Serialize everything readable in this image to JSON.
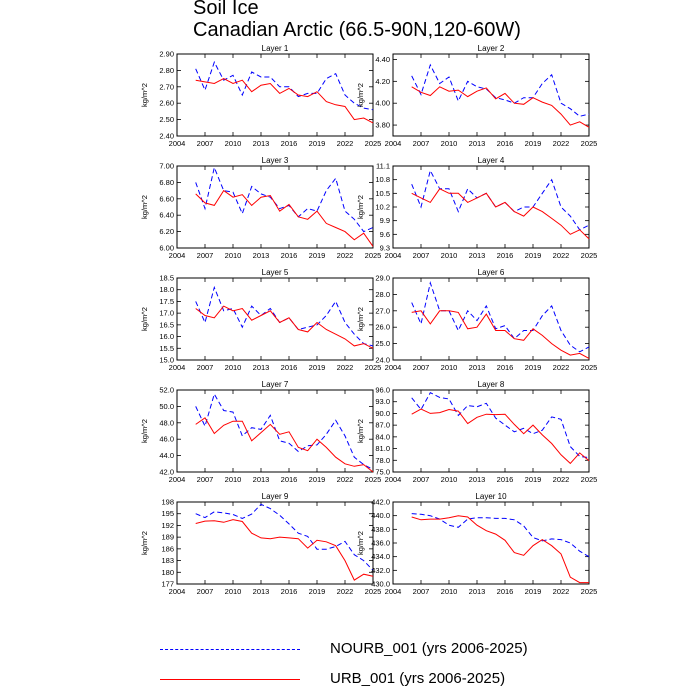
{
  "title": "Soil Ice",
  "subtitle": "Canadian Arctic (66.5-90N,120-60W)",
  "colors": {
    "nourb": "#0000ff",
    "urb": "#ff0000",
    "axis": "#000000"
  },
  "legend": [
    {
      "label": "NOURB_001 (yrs 2006-2025)",
      "color": "#0000ff",
      "style": "dashed"
    },
    {
      "label": "URB_001 (yrs 2006-2025)",
      "color": "#ff0000",
      "style": "solid"
    }
  ],
  "chart_data": [
    {
      "type": "line",
      "title": "Layer 1",
      "xlabel": "",
      "ylabel": "kg/m^2",
      "x": [
        2006,
        2007,
        2008,
        2009,
        2010,
        2011,
        2012,
        2013,
        2014,
        2015,
        2016,
        2017,
        2018,
        2019,
        2020,
        2021,
        2022,
        2023,
        2024,
        2025
      ],
      "xlim": [
        2004,
        2025
      ],
      "xticks": [
        "2004",
        "2007",
        "2010",
        "2013",
        "2016",
        "2019",
        "2022",
        "2025"
      ],
      "yticks": [
        "2.40",
        "2.50",
        "2.60",
        "2.70",
        "2.80",
        "2.90"
      ],
      "ylim": [
        2.4,
        2.9
      ],
      "series": [
        {
          "name": "NOURB_001",
          "values": [
            2.81,
            2.68,
            2.85,
            2.74,
            2.77,
            2.65,
            2.79,
            2.76,
            2.76,
            2.7,
            2.7,
            2.64,
            2.66,
            2.66,
            2.75,
            2.78,
            2.65,
            2.6,
            2.57,
            2.56
          ]
        },
        {
          "name": "URB_001",
          "values": [
            2.74,
            2.73,
            2.72,
            2.75,
            2.72,
            2.74,
            2.67,
            2.71,
            2.72,
            2.66,
            2.69,
            2.65,
            2.64,
            2.67,
            2.61,
            2.59,
            2.58,
            2.5,
            2.51,
            2.48
          ]
        }
      ]
    },
    {
      "type": "line",
      "title": "Layer 2",
      "xlabel": "",
      "ylabel": "kg/m^2",
      "x": [
        2006,
        2007,
        2008,
        2009,
        2010,
        2011,
        2012,
        2013,
        2014,
        2015,
        2016,
        2017,
        2018,
        2019,
        2020,
        2021,
        2022,
        2023,
        2024,
        2025
      ],
      "xlim": [
        2004,
        2025
      ],
      "xticks": [
        "2004",
        "2007",
        "2010",
        "2013",
        "2016",
        "2019",
        "2022",
        "2025"
      ],
      "yticks": [
        "3.80",
        "4.00",
        "4.20",
        "4.40"
      ],
      "ylim": [
        3.7,
        4.45
      ],
      "series": [
        {
          "name": "NOURB_001",
          "values": [
            4.25,
            4.08,
            4.35,
            4.18,
            4.24,
            4.02,
            4.2,
            4.15,
            4.13,
            4.05,
            4.03,
            4.0,
            4.05,
            4.05,
            4.18,
            4.26,
            4.0,
            3.95,
            3.88,
            3.9
          ]
        },
        {
          "name": "URB_001",
          "values": [
            4.15,
            4.1,
            4.07,
            4.15,
            4.11,
            4.12,
            4.06,
            4.11,
            4.14,
            4.04,
            4.09,
            4.0,
            3.99,
            4.05,
            4.01,
            3.98,
            3.9,
            3.8,
            3.83,
            3.78
          ]
        }
      ]
    },
    {
      "type": "line",
      "title": "Layer 3",
      "xlabel": "",
      "ylabel": "kg/m^2",
      "x": [
        2006,
        2007,
        2008,
        2009,
        2010,
        2011,
        2012,
        2013,
        2014,
        2015,
        2016,
        2017,
        2018,
        2019,
        2020,
        2021,
        2022,
        2023,
        2024,
        2025
      ],
      "xlim": [
        2004,
        2025
      ],
      "xticks": [
        "2004",
        "2007",
        "2010",
        "2013",
        "2016",
        "2019",
        "2022",
        "2025"
      ],
      "yticks": [
        "6.00",
        "6.20",
        "6.40",
        "6.60",
        "6.80",
        "7.00"
      ],
      "ylim": [
        6.0,
        7.0
      ],
      "series": [
        {
          "name": "NOURB_001",
          "values": [
            6.8,
            6.48,
            6.98,
            6.7,
            6.68,
            6.42,
            6.75,
            6.66,
            6.62,
            6.48,
            6.52,
            6.38,
            6.48,
            6.45,
            6.7,
            6.85,
            6.45,
            6.35,
            6.2,
            6.25
          ]
        },
        {
          "name": "URB_001",
          "values": [
            6.66,
            6.55,
            6.52,
            6.7,
            6.62,
            6.65,
            6.52,
            6.62,
            6.64,
            6.45,
            6.53,
            6.38,
            6.35,
            6.45,
            6.3,
            6.25,
            6.2,
            6.1,
            6.18,
            6.02
          ]
        }
      ]
    },
    {
      "type": "line",
      "title": "Layer 4",
      "xlabel": "",
      "ylabel": "kg/m^2",
      "x": [
        2006,
        2007,
        2008,
        2009,
        2010,
        2011,
        2012,
        2013,
        2014,
        2015,
        2016,
        2017,
        2018,
        2019,
        2020,
        2021,
        2022,
        2023,
        2024,
        2025
      ],
      "xlim": [
        2004,
        2025
      ],
      "xticks": [
        "2004",
        "2007",
        "2010",
        "2013",
        "2016",
        "2019",
        "2022",
        "2025"
      ],
      "yticks": [
        "9.3",
        "9.6",
        "9.9",
        "10.2",
        "10.5",
        "10.8",
        "11.1"
      ],
      "ylim": [
        9.3,
        11.1
      ],
      "series": [
        {
          "name": "NOURB_001",
          "values": [
            10.7,
            10.2,
            11.0,
            10.6,
            10.6,
            10.1,
            10.6,
            10.4,
            10.5,
            10.2,
            10.3,
            10.1,
            10.2,
            10.2,
            10.5,
            10.8,
            10.2,
            10.0,
            9.7,
            9.8
          ]
        },
        {
          "name": "URB_001",
          "values": [
            10.5,
            10.4,
            10.3,
            10.6,
            10.5,
            10.5,
            10.3,
            10.4,
            10.5,
            10.2,
            10.3,
            10.1,
            10.0,
            10.2,
            10.1,
            9.95,
            9.8,
            9.6,
            9.7,
            9.5
          ]
        }
      ]
    },
    {
      "type": "line",
      "title": "Layer 5",
      "xlabel": "",
      "ylabel": "kg/m^2",
      "x": [
        2006,
        2007,
        2008,
        2009,
        2010,
        2011,
        2012,
        2013,
        2014,
        2015,
        2016,
        2017,
        2018,
        2019,
        2020,
        2021,
        2022,
        2023,
        2024,
        2025
      ],
      "xlim": [
        2004,
        2025
      ],
      "xticks": [
        "2004",
        "2007",
        "2010",
        "2013",
        "2016",
        "2019",
        "2022",
        "2025"
      ],
      "yticks": [
        "15.0",
        "15.5",
        "16.0",
        "16.5",
        "17.0",
        "17.5",
        "18.0",
        "18.5"
      ],
      "ylim": [
        15.0,
        18.5
      ],
      "series": [
        {
          "name": "NOURB_001",
          "values": [
            17.5,
            16.6,
            18.1,
            17.1,
            17.2,
            16.4,
            17.3,
            16.9,
            17.2,
            16.6,
            16.8,
            16.3,
            16.4,
            16.5,
            16.9,
            17.5,
            16.6,
            16.1,
            15.7,
            15.6
          ]
        },
        {
          "name": "URB_001",
          "values": [
            17.2,
            16.9,
            16.8,
            17.3,
            17.1,
            17.2,
            16.7,
            16.9,
            17.1,
            16.6,
            16.8,
            16.3,
            16.2,
            16.6,
            16.3,
            16.1,
            15.9,
            15.6,
            15.7,
            15.5
          ]
        }
      ]
    },
    {
      "type": "line",
      "title": "Layer 6",
      "xlabel": "",
      "ylabel": "kg/m^2",
      "x": [
        2006,
        2007,
        2008,
        2009,
        2010,
        2011,
        2012,
        2013,
        2014,
        2015,
        2016,
        2017,
        2018,
        2019,
        2020,
        2021,
        2022,
        2023,
        2024,
        2025
      ],
      "xlim": [
        2004,
        2025
      ],
      "xticks": [
        "2004",
        "2007",
        "2010",
        "2013",
        "2016",
        "2019",
        "2022",
        "2025"
      ],
      "yticks": [
        "24.0",
        "25.0",
        "26.0",
        "27.0",
        "28.0",
        "29.0"
      ],
      "ylim": [
        24.0,
        29.0
      ],
      "series": [
        {
          "name": "NOURB_001",
          "values": [
            27.5,
            26.2,
            28.7,
            27.0,
            27.0,
            25.8,
            27.0,
            26.4,
            27.3,
            25.9,
            26.1,
            25.3,
            25.8,
            25.8,
            26.7,
            27.3,
            25.8,
            24.9,
            24.5,
            24.8
          ]
        },
        {
          "name": "URB_001",
          "values": [
            26.9,
            27.0,
            26.2,
            27.0,
            27.0,
            26.9,
            25.9,
            26.0,
            26.8,
            25.8,
            25.8,
            25.3,
            25.2,
            25.9,
            25.5,
            25.0,
            24.6,
            24.3,
            24.4,
            24.1
          ]
        }
      ]
    },
    {
      "type": "line",
      "title": "Layer 7",
      "xlabel": "",
      "ylabel": "kg/m^2",
      "x": [
        2006,
        2007,
        2008,
        2009,
        2010,
        2011,
        2012,
        2013,
        2014,
        2015,
        2016,
        2017,
        2018,
        2019,
        2020,
        2021,
        2022,
        2023,
        2024,
        2025
      ],
      "xlim": [
        2004,
        2025
      ],
      "xticks": [
        "2004",
        "2007",
        "2010",
        "2013",
        "2016",
        "2019",
        "2022",
        "2025"
      ],
      "yticks": [
        "42.0",
        "44.0",
        "46.0",
        "48.0",
        "50.0",
        "52.0"
      ],
      "ylim": [
        42.0,
        52.0
      ],
      "series": [
        {
          "name": "NOURB_001",
          "values": [
            50.0,
            47.6,
            51.5,
            49.5,
            49.3,
            46.4,
            47.4,
            47.2,
            48.9,
            45.8,
            45.5,
            44.5,
            45.2,
            45.3,
            46.6,
            48.3,
            46.4,
            43.8,
            42.9,
            42.3
          ]
        },
        {
          "name": "URB_001",
          "values": [
            47.8,
            48.6,
            46.7,
            47.7,
            48.2,
            48.2,
            45.8,
            46.8,
            47.8,
            46.6,
            46.9,
            45.0,
            44.6,
            46.0,
            45.0,
            43.8,
            43.0,
            42.7,
            42.9,
            42.0
          ]
        }
      ]
    },
    {
      "type": "line",
      "title": "Layer 8",
      "xlabel": "",
      "ylabel": "kg/m^2",
      "x": [
        2006,
        2007,
        2008,
        2009,
        2010,
        2011,
        2012,
        2013,
        2014,
        2015,
        2016,
        2017,
        2018,
        2019,
        2020,
        2021,
        2022,
        2023,
        2024,
        2025
      ],
      "xlim": [
        2004,
        2025
      ],
      "xticks": [
        "2004",
        "2007",
        "2010",
        "2013",
        "2016",
        "2019",
        "2022",
        "2025"
      ],
      "yticks": [
        "75.0",
        "78.0",
        "81.0",
        "84.0",
        "87.0",
        "90.0",
        "93.0",
        "96.0"
      ],
      "ylim": [
        75.0,
        96.0
      ],
      "series": [
        {
          "name": "NOURB_001",
          "values": [
            94.0,
            91.0,
            95.3,
            94.1,
            93.7,
            89.5,
            92.0,
            91.7,
            92.6,
            88.8,
            87.0,
            85.3,
            86.2,
            84.8,
            85.7,
            89.1,
            88.5,
            81.5,
            79.0,
            78.7
          ]
        },
        {
          "name": "URB_001",
          "values": [
            89.8,
            91.1,
            90.0,
            90.2,
            91.0,
            90.6,
            87.4,
            89.0,
            89.8,
            89.7,
            89.8,
            87.2,
            84.8,
            87.0,
            84.5,
            82.3,
            79.4,
            77.2,
            79.9,
            77.9
          ]
        }
      ]
    },
    {
      "type": "line",
      "title": "Layer 9",
      "xlabel": "",
      "ylabel": "kg/m^2",
      "x": [
        2006,
        2007,
        2008,
        2009,
        2010,
        2011,
        2012,
        2013,
        2014,
        2015,
        2016,
        2017,
        2018,
        2019,
        2020,
        2021,
        2022,
        2023,
        2024,
        2025
      ],
      "xlim": [
        2004,
        2025
      ],
      "xticks": [
        "2004",
        "2007",
        "2010",
        "2013",
        "2016",
        "2019",
        "2022",
        "2025"
      ],
      "yticks": [
        "177",
        "180",
        "183",
        "186",
        "189",
        "192",
        "195",
        "198"
      ],
      "ylim": [
        177,
        198
      ],
      "series": [
        {
          "name": "NOURB_001",
          "values": [
            195.0,
            194.0,
            195.5,
            195.2,
            194.8,
            193.8,
            194.9,
            197.4,
            196.3,
            194.6,
            192.4,
            190.0,
            189.2,
            185.9,
            185.9,
            186.6,
            187.9,
            184.5,
            183.0,
            180.5
          ]
        },
        {
          "name": "URB_001",
          "values": [
            192.5,
            193.1,
            193.2,
            192.8,
            193.5,
            193.0,
            190.0,
            188.8,
            188.6,
            189.0,
            188.8,
            188.6,
            186.2,
            188.2,
            187.8,
            186.8,
            183.0,
            178.0,
            179.5,
            179.0
          ]
        }
      ]
    },
    {
      "type": "line",
      "title": "Layer 10",
      "xlabel": "",
      "ylabel": "kg/m^2",
      "x": [
        2006,
        2007,
        2008,
        2009,
        2010,
        2011,
        2012,
        2013,
        2014,
        2015,
        2016,
        2017,
        2018,
        2019,
        2020,
        2021,
        2022,
        2023,
        2024,
        2025
      ],
      "xlim": [
        2004,
        2025
      ],
      "xticks": [
        "2004",
        "2007",
        "2010",
        "2013",
        "2016",
        "2019",
        "2022",
        "2025"
      ],
      "yticks": [
        "430.0",
        "432.0",
        "434.0",
        "436.0",
        "438.0",
        "440.0",
        "442.0"
      ],
      "ylim": [
        430.0,
        442.0
      ],
      "series": [
        {
          "name": "NOURB_001",
          "values": [
            440.3,
            440.2,
            440.0,
            439.5,
            438.6,
            438.3,
            439.5,
            439.7,
            439.7,
            439.6,
            439.6,
            439.4,
            438.5,
            436.8,
            436.3,
            436.6,
            436.5,
            436.0,
            434.8,
            434.0
          ]
        },
        {
          "name": "URB_001",
          "values": [
            439.8,
            439.4,
            439.5,
            439.5,
            439.7,
            440.0,
            439.8,
            438.6,
            437.8,
            437.3,
            436.4,
            434.6,
            434.2,
            435.6,
            436.5,
            435.6,
            434.4,
            431.0,
            430.2,
            430.2
          ]
        }
      ]
    }
  ]
}
